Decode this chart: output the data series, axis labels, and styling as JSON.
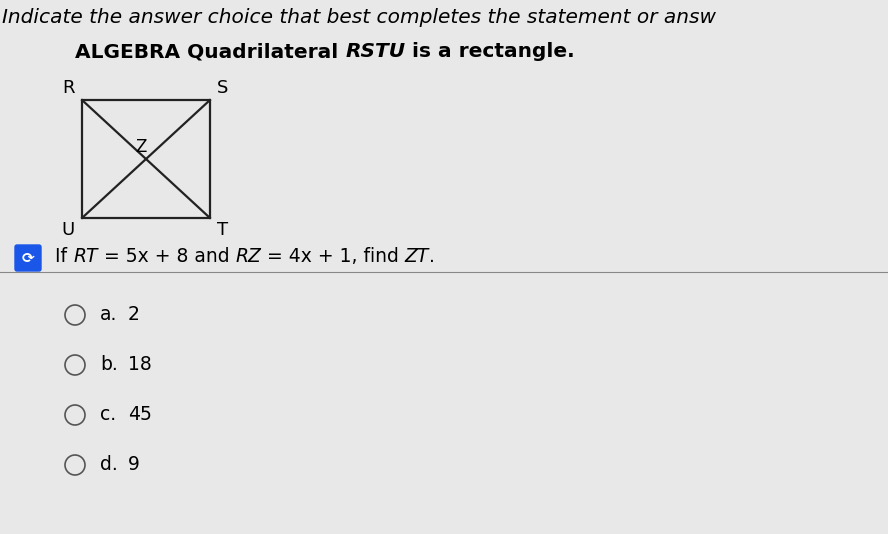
{
  "bg_color": "#e8e8e8",
  "title_line1": "Indicate the answer choice that best completes the statement or answ",
  "title_line1_size": 14.5,
  "section_header_bold": "ALGEBRA Quadrilateral ",
  "section_header_italic": "RSTU",
  "section_header_end": " is a rectangle.",
  "section_header_size": 14.5,
  "question_size": 13.5,
  "choice_size": 13.5,
  "rect_color": "#222222",
  "blue_box_color": "#1a56e8",
  "corner_labels": [
    "R",
    "S",
    "T",
    "U"
  ],
  "center_label": "Z",
  "choices_labels": [
    "a.",
    "b.",
    "c.",
    "d."
  ],
  "choices_values": [
    "2",
    "18",
    "45",
    "9"
  ]
}
